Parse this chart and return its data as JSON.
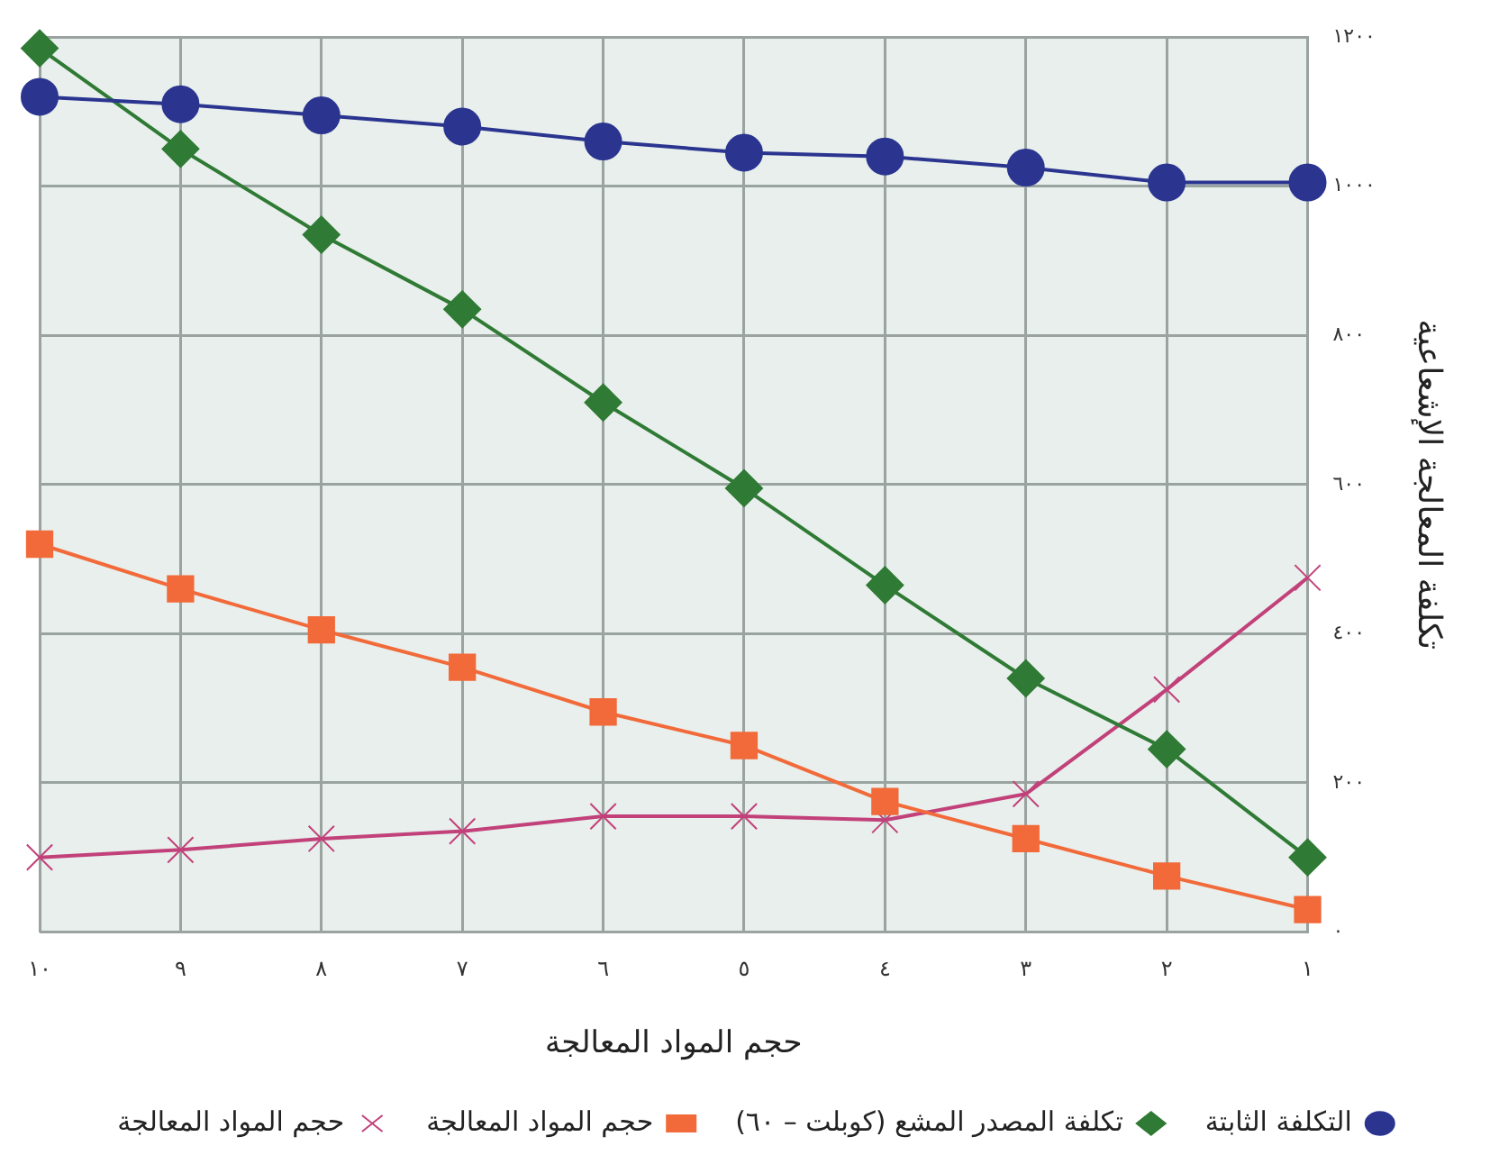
{
  "chart_data": {
    "type": "line",
    "xlabel": "حجم المواد المعالجة",
    "ylabel": "تكلفة المعالجة الإشعاعية",
    "x": [
      10,
      9,
      8,
      7,
      6,
      5,
      4,
      3,
      2,
      1
    ],
    "xlim": [
      10,
      1
    ],
    "xticks": [
      {
        "value": 10,
        "label": "١٠"
      },
      {
        "value": 9,
        "label": "٩"
      },
      {
        "value": 8,
        "label": "٨"
      },
      {
        "value": 7,
        "label": "٧"
      },
      {
        "value": 6,
        "label": "٦"
      },
      {
        "value": 5,
        "label": "٥"
      },
      {
        "value": 4,
        "label": "٤"
      },
      {
        "value": 3,
        "label": "٣"
      },
      {
        "value": 2,
        "label": "٢"
      },
      {
        "value": 1,
        "label": "١"
      }
    ],
    "ylim": [
      0,
      1200
    ],
    "yticks": [
      {
        "value": 0,
        "label": "٠"
      },
      {
        "value": 200,
        "label": "٢٠٠"
      },
      {
        "value": 400,
        "label": "٤٠٠"
      },
      {
        "value": 600,
        "label": "٦٠٠"
      },
      {
        "value": 800,
        "label": "٨٠٠"
      },
      {
        "value": 1000,
        "label": "١٠٠٠"
      },
      {
        "value": 1200,
        "label": "١٢٠٠"
      }
    ],
    "grid": true,
    "legend": "bottom",
    "series": [
      {
        "name": "التكلفة الثابتة",
        "color": "#2b3590",
        "marker": "circle",
        "values": [
          1120,
          1110,
          1095,
          1080,
          1060,
          1045,
          1040,
          1025,
          1005,
          1005
        ]
      },
      {
        "name": "تكلفة المصدر المشع (كوبلت – ٦٠)",
        "color": "#2f7a34",
        "marker": "diamond",
        "values": [
          1185,
          1050,
          935,
          835,
          710,
          595,
          465,
          340,
          245,
          100
        ]
      },
      {
        "name": "حجم المواد المعالجة",
        "color": "#f26a3a",
        "marker": "square",
        "values": [
          520,
          460,
          405,
          355,
          295,
          250,
          175,
          125,
          75,
          30
        ]
      },
      {
        "name": "حجم المواد المعالجة",
        "color": "#c2417a",
        "marker": "cross",
        "values": [
          100,
          110,
          125,
          135,
          155,
          155,
          150,
          185,
          325,
          475
        ]
      }
    ]
  }
}
